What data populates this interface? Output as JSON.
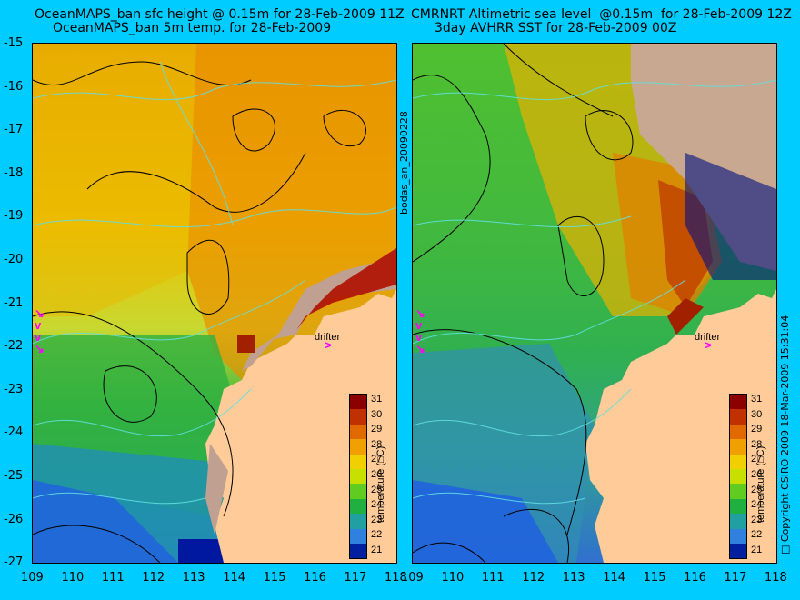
{
  "left_title_line1": "OceanMAPS_ban sfc height @ 0.15m for 28-Feb-2009 11Z",
  "left_title_line2": "OceanMAPS_ban 5m temp. for 28-Feb-2009",
  "right_title_line1": "CMRNRT Altimetric sea level  @0.15m  for 28-Feb-2009 12Z",
  "right_title_line2": "3day AVHRR SST for 28-Feb-2009 00Z",
  "y_ticks": [
    "-15",
    "-16",
    "-17",
    "-18",
    "-19",
    "-20",
    "-21",
    "-22",
    "-23",
    "-24",
    "-25",
    "-26",
    "-27"
  ],
  "x_ticks": [
    "109",
    "110",
    "111",
    "112",
    "113",
    "114",
    "115",
    "116",
    "117",
    "118"
  ],
  "colorbar_ticks": [
    "31",
    "30",
    "29",
    "28",
    "27",
    "26",
    "25",
    "24",
    "23",
    "22",
    "21"
  ],
  "colorbar_title": "temperature (□C)",
  "colorbar_colors": [
    "#8b0000",
    "#c03000",
    "#e06a00",
    "#f0a000",
    "#f0d000",
    "#c8e000",
    "#60cc20",
    "#20b040",
    "#20a0a0",
    "#3080e0",
    "#0020a0"
  ],
  "drifter_label": "drifter",
  "side_label_left": "bodas_an_20090228",
  "side_label_right": "□ Copyright CSIRO 2009   18-Mar-2009 15:31:04"
}
